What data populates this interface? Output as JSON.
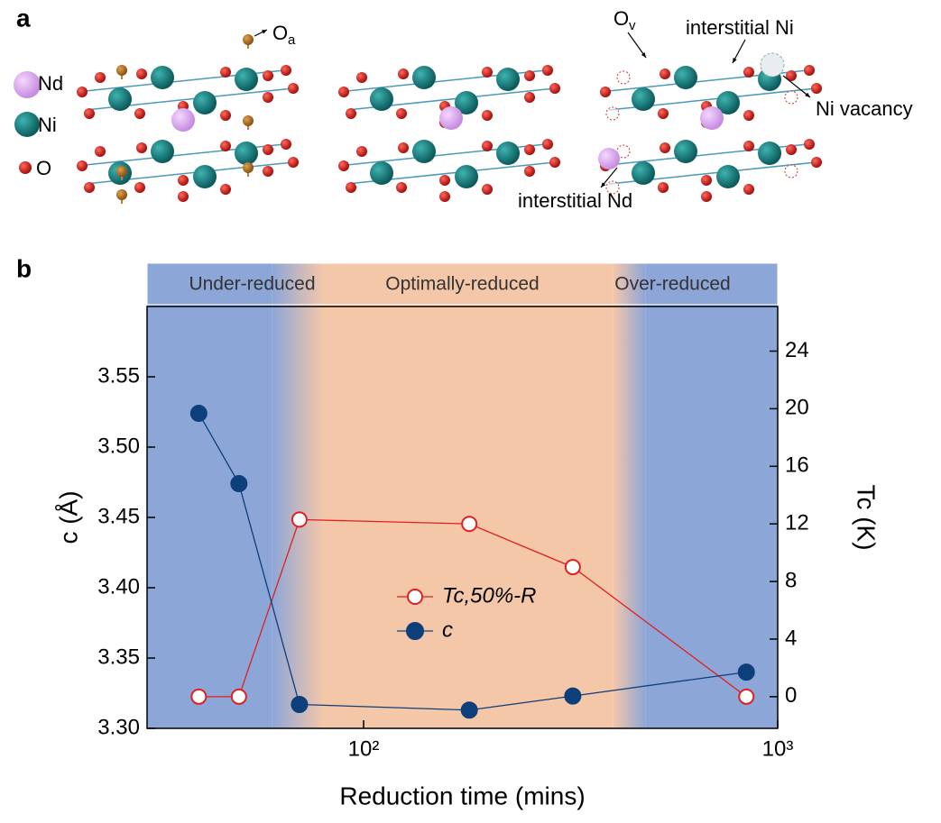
{
  "panel_a": {
    "label": "a",
    "legend": [
      "Nd",
      "Ni",
      "O"
    ],
    "annotations": {
      "oa": {
        "base": "O",
        "sub": "a"
      },
      "ov": {
        "base": "O",
        "sub": "v"
      },
      "interstitial_ni": "interstitial Ni",
      "ni_vacancy": "Ni vacancy",
      "interstitial_nd": "interstitial Nd"
    }
  },
  "panel_b": {
    "label": "b"
  },
  "chart_data": {
    "type": "line",
    "xlabel": "Reduction time (mins)",
    "ylabel": "c (Å)",
    "y2label": "Tc (K)",
    "xscale": "log",
    "xlim": [
      30,
      1000
    ],
    "xticks": [
      {
        "value": 100,
        "label": "10²"
      },
      {
        "value": 1000,
        "label": "10³"
      }
    ],
    "ylim": [
      3.3,
      3.6
    ],
    "yticks": [
      {
        "value": 3.3,
        "label": "3.30"
      },
      {
        "value": 3.35,
        "label": "3.35"
      },
      {
        "value": 3.4,
        "label": "3.40"
      },
      {
        "value": 3.45,
        "label": "3.45"
      },
      {
        "value": 3.5,
        "label": "3.50"
      },
      {
        "value": 3.55,
        "label": "3.55"
      }
    ],
    "y2lim": [
      -2.2,
      27.1
    ],
    "y2ticks": [
      0,
      4,
      8,
      12,
      16,
      20,
      24
    ],
    "regions": [
      {
        "label": "Under-reduced",
        "range": [
          30,
          60
        ],
        "color": "#8ca6d8"
      },
      {
        "label": "Optimally-reduced",
        "range": [
          80,
          400
        ],
        "color": "#f5c7a9"
      },
      {
        "label": "Over-reduced",
        "range": [
          480,
          1000
        ],
        "color": "#8ca6d8"
      }
    ],
    "x": [
      40,
      50,
      70,
      180,
      320,
      840
    ],
    "series": [
      {
        "name": "Tc,50%-R",
        "color": "#e02020",
        "marker": "open",
        "axis": "y2",
        "values": [
          0,
          0,
          12.3,
          12.0,
          9.0,
          0
        ]
      },
      {
        "name": "c",
        "color": "#0d3f7a",
        "marker": "filled",
        "values": [
          3.524,
          3.474,
          3.317,
          3.313,
          3.323,
          3.34
        ]
      }
    ]
  }
}
